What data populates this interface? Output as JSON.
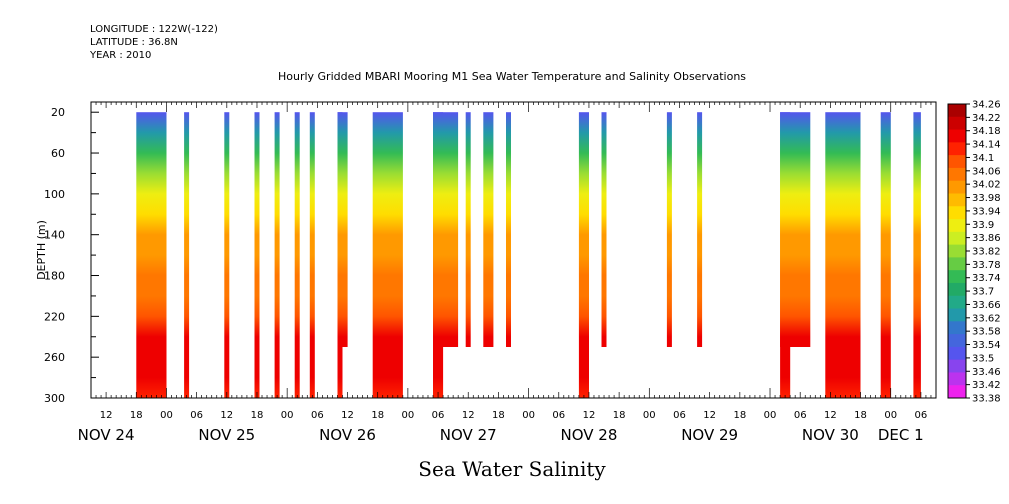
{
  "header": {
    "longitude": "LONGITUDE : 122W(-122)",
    "latitude": "LATITUDE : 36.8N",
    "year": "YEAR : 2010"
  },
  "chart_data": {
    "type": "heatmap",
    "title": "Hourly Gridded MBARI Mooring M1 Sea Water Temperature and Salinity Observations",
    "xlabel": "Sea Water Salinity",
    "ylabel": "DEPTH (m)",
    "x_unit": "hours since NOV 24 00:00",
    "xlim": [
      9,
      177
    ],
    "ylim": [
      300,
      10
    ],
    "y_ticks": [
      20,
      60,
      100,
      140,
      180,
      220,
      260,
      300
    ],
    "x_hour_ticks": [
      "12",
      "18",
      "00",
      "06",
      "12",
      "18",
      "00",
      "06",
      "12",
      "18",
      "00",
      "06",
      "12",
      "18",
      "00",
      "06",
      "12",
      "18",
      "00",
      "06",
      "12",
      "18",
      "00",
      "06",
      "12",
      "18",
      "00",
      "06"
    ],
    "x_day_labels": [
      {
        "label": "NOV 24",
        "hour": 12
      },
      {
        "label": "NOV 25",
        "hour": 36
      },
      {
        "label": "NOV 26",
        "hour": 60
      },
      {
        "label": "NOV 27",
        "hour": 84
      },
      {
        "label": "NOV 28",
        "hour": 108
      },
      {
        "label": "NOV 29",
        "hour": 132
      },
      {
        "label": "NOV 30",
        "hour": 156
      },
      {
        "label": "DEC  1",
        "hour": 170
      }
    ],
    "colorbar_levels": [
      "34.26",
      "34.22",
      "34.18",
      "34.14",
      "34.1",
      "34.06",
      "34.02",
      "33.98",
      "33.94",
      "33.9",
      "33.86",
      "33.82",
      "33.78",
      "33.74",
      "33.7",
      "33.66",
      "33.62",
      "33.58",
      "33.54",
      "33.5",
      "33.46",
      "33.42",
      "33.38"
    ],
    "profile": [
      {
        "depth": 20,
        "value": 33.53
      },
      {
        "depth": 40,
        "value": 33.62
      },
      {
        "depth": 60,
        "value": 33.76
      },
      {
        "depth": 80,
        "value": 33.84
      },
      {
        "depth": 100,
        "value": 33.9
      },
      {
        "depth": 120,
        "value": 33.95
      },
      {
        "depth": 140,
        "value": 34.02
      },
      {
        "depth": 160,
        "value": 34.05
      },
      {
        "depth": 180,
        "value": 34.06
      },
      {
        "depth": 200,
        "value": 34.08
      },
      {
        "depth": 220,
        "value": 34.13
      },
      {
        "depth": 240,
        "value": 34.18
      },
      {
        "depth": 260,
        "value": 34.21
      },
      {
        "depth": 280,
        "value": 34.18
      },
      {
        "depth": 300,
        "value": 34.16
      }
    ],
    "data_blocks": [
      {
        "start": 18,
        "end": 24,
        "max_depth": 300
      },
      {
        "start": 27.5,
        "end": 28.5,
        "max_depth": 300
      },
      {
        "start": 35.5,
        "end": 36.5,
        "max_depth": 300
      },
      {
        "start": 41.5,
        "end": 42.5,
        "max_depth": 300
      },
      {
        "start": 45.5,
        "end": 46.5,
        "max_depth": 300
      },
      {
        "start": 49.5,
        "end": 50.5,
        "max_depth": 300
      },
      {
        "start": 52.5,
        "end": 53.5,
        "max_depth": 300
      },
      {
        "start": 58,
        "end": 60,
        "max_depth": 250
      },
      {
        "start": 58,
        "end": 59,
        "max_depth": 300
      },
      {
        "start": 65,
        "end": 71,
        "max_depth": 300
      },
      {
        "start": 77,
        "end": 82,
        "max_depth": 250
      },
      {
        "start": 77,
        "end": 79,
        "max_depth": 300
      },
      {
        "start": 83.5,
        "end": 84.5,
        "max_depth": 250
      },
      {
        "start": 87,
        "end": 89,
        "max_depth": 250
      },
      {
        "start": 91.5,
        "end": 92.5,
        "max_depth": 250
      },
      {
        "start": 106,
        "end": 108,
        "max_depth": 300
      },
      {
        "start": 110.5,
        "end": 111.5,
        "max_depth": 250
      },
      {
        "start": 123.5,
        "end": 124.5,
        "max_depth": 250
      },
      {
        "start": 129.5,
        "end": 130.5,
        "max_depth": 250
      },
      {
        "start": 146,
        "end": 152,
        "max_depth": 250
      },
      {
        "start": 146,
        "end": 148,
        "max_depth": 300
      },
      {
        "start": 155,
        "end": 162,
        "max_depth": 300
      },
      {
        "start": 166,
        "end": 168,
        "max_depth": 300
      },
      {
        "start": 172.5,
        "end": 174,
        "max_depth": 300
      }
    ],
    "grid": false,
    "legend": "right"
  }
}
